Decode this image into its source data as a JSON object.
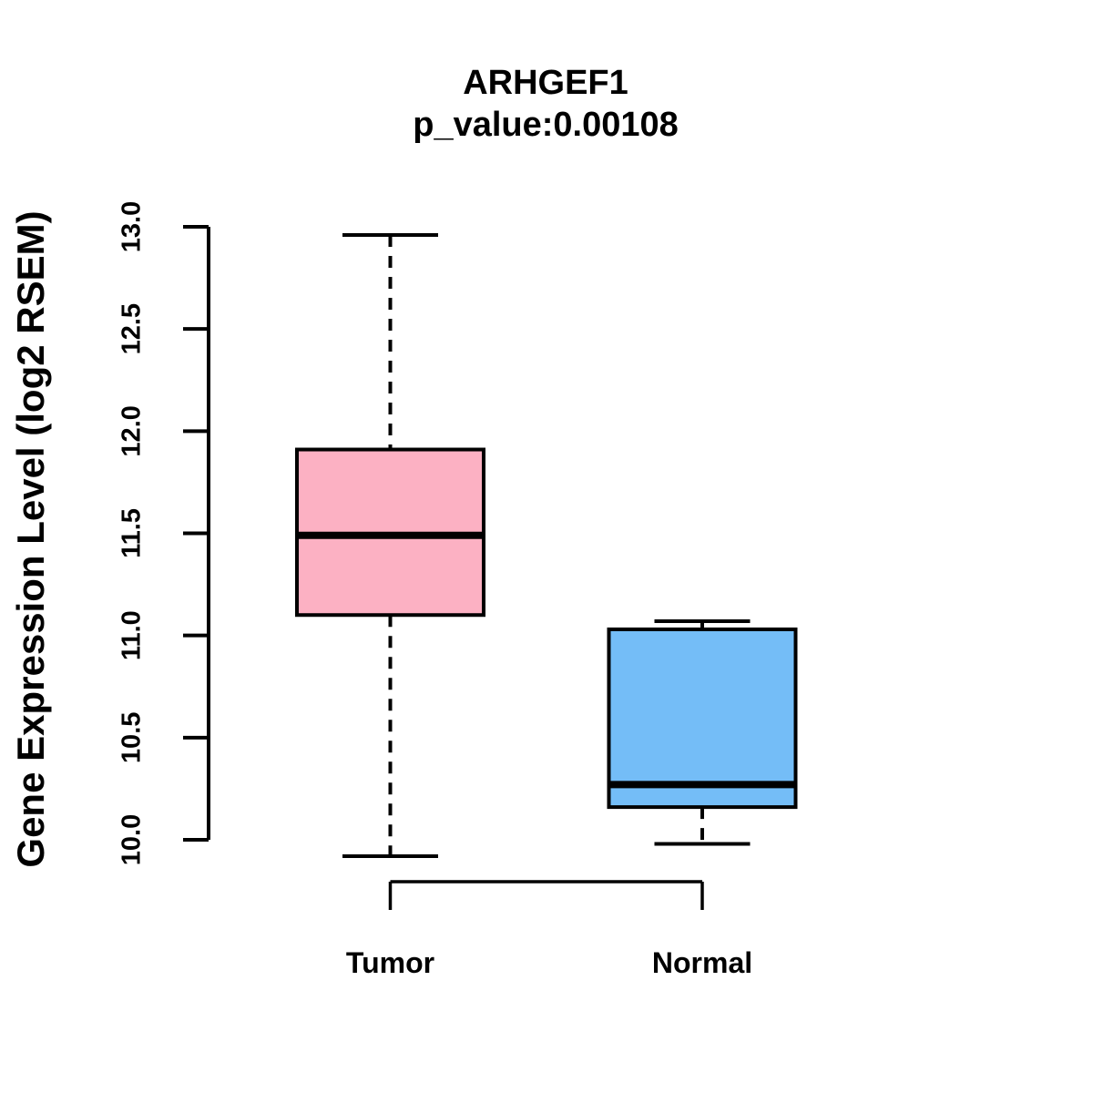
{
  "title": {
    "line1": "ARHGEF1",
    "line2": "p_value:0.00108"
  },
  "axes": {
    "y_label": "Gene Expression Level (log2 RSEM)",
    "y_tick_labels": [
      "10.0",
      "10.5",
      "11.0",
      "11.5",
      "12.0",
      "12.5",
      "13.0"
    ]
  },
  "chart_data": {
    "type": "boxplot",
    "title": "ARHGEF1",
    "subtitle": "p_value:0.00108",
    "ylabel": "Gene Expression Level (log2 RSEM)",
    "ylim": [
      10,
      13
    ],
    "y_tick_step": 0.5,
    "grid": false,
    "categories": [
      "Tumor",
      "Normal"
    ],
    "series": [
      {
        "name": "Tumor",
        "color": "#FCB1C3",
        "whisker_low": 9.92,
        "q1": 11.1,
        "median": 11.49,
        "q3": 11.91,
        "whisker_high": 12.96
      },
      {
        "name": "Normal",
        "color": "#74BDF7",
        "whisker_low": 9.98,
        "q1": 10.16,
        "median": 10.27,
        "q3": 11.03,
        "whisker_high": 11.07
      }
    ],
    "comparison_bracket": {
      "between": [
        "Tumor",
        "Normal"
      ]
    },
    "styles": {
      "stroke_color": "#000000",
      "box_border_width": 4,
      "median_width": 8,
      "whisker_width": 4,
      "axis_width": 4
    }
  }
}
